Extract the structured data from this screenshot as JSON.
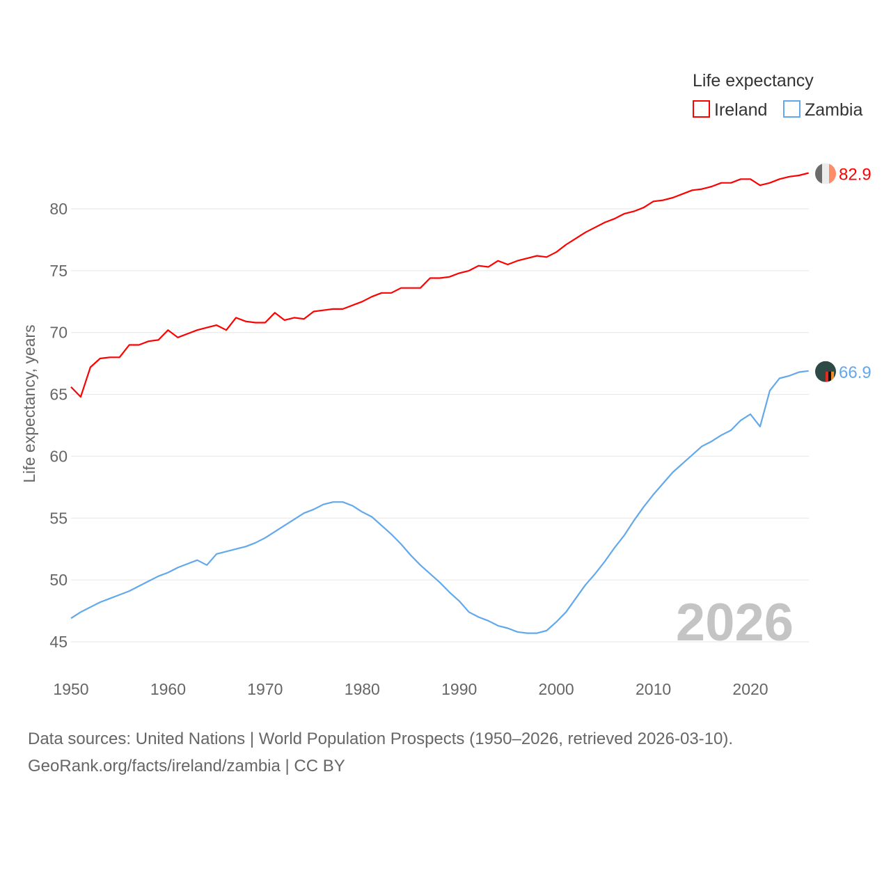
{
  "chart_data": {
    "type": "line",
    "legend_title": "Life expectancy",
    "legend_placement": "top-right",
    "ylabel": "Life expectancy, years",
    "xlabel": "",
    "xlim": [
      1950,
      2026
    ],
    "ylim": [
      45,
      83
    ],
    "yticks": [
      45,
      50,
      55,
      60,
      65,
      70,
      75,
      80
    ],
    "xticks": [
      1950,
      1960,
      1970,
      1980,
      1990,
      2000,
      2010,
      2020
    ],
    "grid": true,
    "watermark_year": "2026",
    "x_start": 1950,
    "series": [
      {
        "name": "Ireland",
        "color": "#ff0000",
        "end_label": "82.9",
        "values": [
          65.6,
          64.8,
          67.2,
          67.9,
          68.0,
          68.0,
          69.0,
          69.0,
          69.3,
          69.4,
          70.2,
          69.6,
          69.9,
          70.2,
          70.4,
          70.6,
          70.2,
          71.2,
          70.9,
          70.8,
          70.8,
          71.6,
          71.0,
          71.2,
          71.1,
          71.7,
          71.8,
          71.9,
          71.9,
          72.2,
          72.5,
          72.9,
          73.2,
          73.2,
          73.6,
          73.6,
          73.6,
          74.4,
          74.4,
          74.5,
          74.8,
          75.0,
          75.4,
          75.3,
          75.8,
          75.5,
          75.8,
          76.0,
          76.2,
          76.1,
          76.5,
          77.1,
          77.6,
          78.1,
          78.5,
          78.9,
          79.2,
          79.6,
          79.8,
          80.1,
          80.6,
          80.7,
          80.9,
          81.2,
          81.5,
          81.6,
          81.8,
          82.1,
          82.1,
          82.4,
          82.4,
          81.9,
          82.1,
          82.4,
          82.6,
          82.7,
          82.9
        ]
      },
      {
        "name": "Zambia",
        "color": "#62a8ea",
        "end_label": "66.9",
        "values": [
          46.9,
          47.4,
          47.8,
          48.2,
          48.5,
          48.8,
          49.1,
          49.5,
          49.9,
          50.3,
          50.6,
          51.0,
          51.3,
          51.6,
          51.2,
          52.1,
          52.3,
          52.5,
          52.7,
          53.0,
          53.4,
          53.9,
          54.4,
          54.9,
          55.4,
          55.7,
          56.1,
          56.3,
          56.3,
          56.0,
          55.5,
          55.1,
          54.4,
          53.7,
          52.9,
          52.0,
          51.2,
          50.5,
          49.8,
          49.0,
          48.3,
          47.4,
          47.0,
          46.7,
          46.3,
          46.1,
          45.8,
          45.7,
          45.7,
          45.9,
          46.6,
          47.4,
          48.5,
          49.6,
          50.5,
          51.5,
          52.6,
          53.6,
          54.8,
          55.9,
          56.9,
          57.8,
          58.7,
          59.4,
          60.1,
          60.8,
          61.2,
          61.7,
          62.1,
          62.9,
          63.4,
          62.4,
          65.3,
          66.3,
          66.5,
          66.8,
          66.9
        ]
      }
    ]
  },
  "footer": {
    "line1": "Data sources: United Nations | World Population Prospects (1950–2026, retrieved 2026-03-10).",
    "line2": "GeoRank.org/facts/ireland/zambia | CC BY"
  }
}
